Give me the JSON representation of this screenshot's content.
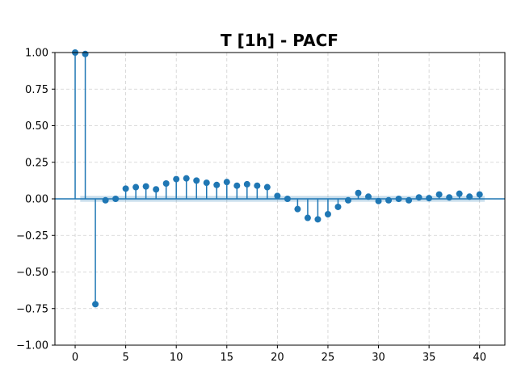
{
  "chart_data": {
    "type": "stem",
    "title": "T [1h] - PACF",
    "xlabel": "",
    "ylabel": "",
    "xlim": [
      -2,
      42.5
    ],
    "ylim": [
      -1.0,
      1.0
    ],
    "x_ticks": [
      0,
      5,
      10,
      15,
      20,
      25,
      30,
      35,
      40
    ],
    "y_ticks": [
      1.0,
      0.75,
      0.5,
      0.25,
      0.0,
      -0.25,
      -0.5,
      -0.75,
      -1.0
    ],
    "x_tick_labels": [
      "0",
      "5",
      "10",
      "15",
      "20",
      "25",
      "30",
      "35",
      "40"
    ],
    "y_tick_labels": [
      "1.00",
      "0.75",
      "0.50",
      "0.25",
      "0.00",
      "−0.25",
      "−0.50",
      "−0.75",
      "−1.00"
    ],
    "grid": true,
    "confidence_band": 0.02,
    "lags": [
      0,
      1,
      2,
      3,
      4,
      5,
      6,
      7,
      8,
      9,
      10,
      11,
      12,
      13,
      14,
      15,
      16,
      17,
      18,
      19,
      20,
      21,
      22,
      23,
      24,
      25,
      26,
      27,
      28,
      29,
      30,
      31,
      32,
      33,
      34,
      35,
      36,
      37,
      38,
      39,
      40
    ],
    "values": [
      1.0,
      0.99,
      -0.72,
      -0.01,
      0.0,
      0.07,
      0.08,
      0.085,
      0.065,
      0.105,
      0.135,
      0.14,
      0.125,
      0.11,
      0.095,
      0.115,
      0.09,
      0.1,
      0.09,
      0.08,
      0.02,
      0.0,
      -0.07,
      -0.13,
      -0.14,
      -0.105,
      -0.055,
      -0.01,
      0.04,
      0.015,
      -0.015,
      -0.01,
      0.0,
      -0.01,
      0.01,
      0.005,
      0.03,
      0.01,
      0.035,
      0.015,
      0.03
    ],
    "colors": {
      "stem": "#1f77b4",
      "band": "#1f77b4"
    }
  }
}
